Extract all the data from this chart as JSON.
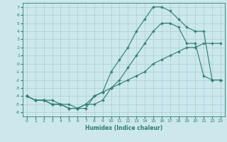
{
  "title": "",
  "xlabel": "Humidex (Indice chaleur)",
  "ylabel": "",
  "background_color": "#cce8ec",
  "grid_color": "#a8cdd4",
  "line_color": "#2e7b6e",
  "xlim": [
    -0.5,
    23.5
  ],
  "ylim": [
    -6.5,
    7.5
  ],
  "xticks": [
    0,
    1,
    2,
    3,
    4,
    5,
    6,
    7,
    8,
    9,
    10,
    11,
    12,
    13,
    14,
    15,
    16,
    17,
    18,
    19,
    20,
    21,
    22,
    23
  ],
  "yticks": [
    -6,
    -5,
    -4,
    -3,
    -2,
    -1,
    0,
    1,
    2,
    3,
    4,
    5,
    6,
    7
  ],
  "line1_x": [
    0,
    1,
    2,
    3,
    4,
    5,
    6,
    7,
    8,
    9,
    10,
    11,
    12,
    13,
    14,
    15,
    16,
    17,
    18,
    19,
    20,
    21,
    22,
    23
  ],
  "line1_y": [
    -4,
    -4.5,
    -4.5,
    -4.5,
    -5,
    -5,
    -5.5,
    -5.5,
    -4,
    -3.5,
    -3,
    -2.5,
    -2,
    -1.5,
    -1,
    0,
    0.5,
    1,
    1.5,
    2,
    2,
    2.5,
    2.5,
    2.5
  ],
  "line2_x": [
    0,
    1,
    2,
    3,
    4,
    5,
    6,
    7,
    8,
    9,
    10,
    11,
    12,
    13,
    14,
    15,
    16,
    17,
    18,
    19,
    20,
    21,
    22,
    23
  ],
  "line2_y": [
    -4,
    -4.5,
    -4.5,
    -5,
    -5,
    -5.5,
    -5.5,
    -5,
    -5,
    -4.5,
    -3,
    -2,
    -0.5,
    1,
    2.5,
    4,
    5,
    5,
    4.5,
    2.5,
    2.5,
    -1.5,
    -2,
    -2
  ],
  "line3_x": [
    0,
    1,
    2,
    3,
    4,
    5,
    6,
    7,
    8,
    9,
    10,
    11,
    12,
    13,
    14,
    15,
    16,
    17,
    18,
    19,
    20,
    21,
    22,
    23
  ],
  "line3_y": [
    -4,
    -4.5,
    -4.5,
    -5,
    -5,
    -5.5,
    -5.5,
    -5,
    -4,
    -3.5,
    -1,
    0.5,
    2,
    4,
    5.5,
    7,
    7,
    6.5,
    5.5,
    4.5,
    4,
    4,
    -2,
    -2
  ]
}
